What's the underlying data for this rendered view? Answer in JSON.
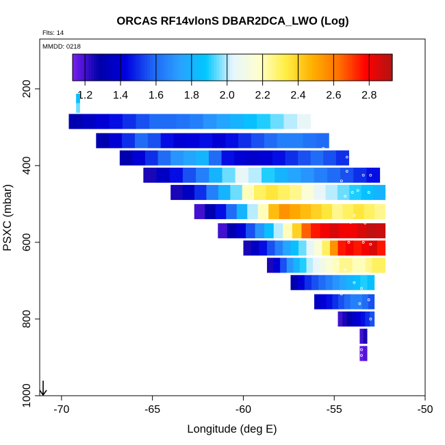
{
  "chart_data": {
    "type": "heatmap",
    "title": "ORCAS RF14vlonS DBAR2DCA_LWO (Log)",
    "annotations": {
      "flights": "Flts: 14",
      "mmdd": "MMDD: 0218"
    },
    "xlabel": "Longitude (deg E)",
    "ylabel": "PSXC (mbar)",
    "xlim": [
      -71.2,
      -50
    ],
    "ylim": [
      1000,
      70
    ],
    "x_ticks": [
      -70,
      -65,
      -60,
      -55,
      -50
    ],
    "x_tick_labels": [
      "-70",
      "-65",
      "-60",
      "-55",
      "-50"
    ],
    "y_ticks": [
      200,
      400,
      600,
      800,
      1000
    ],
    "y_tick_labels": [
      "200",
      "400",
      "600",
      "800",
      "1000"
    ],
    "colorbar": {
      "range": [
        1.13,
        2.93
      ],
      "ticks": [
        1.2,
        1.4,
        1.6,
        1.8,
        2.0,
        2.2,
        2.4,
        2.6,
        2.8
      ],
      "tick_labels": [
        "1.2",
        "1.4",
        "1.6",
        "1.8",
        "2.0",
        "2.2",
        "2.4",
        "2.6",
        "2.8"
      ],
      "colors": [
        "#7a1ff2",
        "#0000a8",
        "#0000e0",
        "#1e64f5",
        "#2aa0ff",
        "#00c8ff",
        "#e6f5ff",
        "#ffffcc",
        "#ffee44",
        "#ffb000",
        "#ff7000",
        "#ff0000",
        "#b01414"
      ]
    },
    "bands": [
      {
        "p": 225,
        "x0": -69.2,
        "x1": -69.0,
        "values": [
          1.85
        ]
      },
      {
        "p": 250,
        "x0": -69.2,
        "x1": -69.0,
        "values": [
          1.95
        ]
      },
      {
        "p": 285,
        "x0": -69.6,
        "x1": -56.3,
        "values": [
          1.3,
          1.35,
          1.4,
          1.45,
          1.5,
          1.55,
          1.6,
          1.6,
          1.62,
          1.65,
          1.7,
          1.75,
          1.8,
          1.85,
          1.9,
          1.95,
          2.0,
          2.05
        ]
      },
      {
        "p": 335,
        "x0": -68.1,
        "x1": -55.3,
        "values": [
          1.3,
          1.4,
          1.5,
          1.6,
          1.55,
          1.45,
          1.4,
          1.42,
          1.45,
          1.4,
          1.45,
          1.5,
          1.55,
          1.6,
          1.65,
          1.65,
          1.62,
          1.6
        ]
      },
      {
        "p": 380,
        "x0": -66.8,
        "x1": -54.2,
        "values": [
          1.3,
          1.4,
          1.5,
          1.6,
          1.7,
          1.75,
          1.8,
          1.6,
          1.45,
          1.4,
          1.38,
          1.4,
          1.45,
          1.5,
          1.55,
          1.6,
          1.55,
          1.5
        ]
      },
      {
        "p": 425,
        "x0": -65.5,
        "x1": -52.5,
        "values": [
          1.25,
          1.35,
          1.45,
          1.55,
          1.65,
          1.8,
          1.95,
          2.05,
          2.0,
          1.9,
          1.8,
          1.75,
          1.7,
          1.65,
          1.6,
          1.55,
          1.5,
          1.45
        ]
      },
      {
        "p": 470,
        "x0": -64.0,
        "x1": -52.2,
        "values": [
          1.25,
          1.35,
          1.5,
          1.65,
          1.8,
          1.95,
          2.2,
          2.3,
          2.35,
          2.3,
          2.25,
          2.15,
          2.05,
          2.0,
          1.95,
          1.9,
          1.85,
          1.8
        ]
      },
      {
        "p": 520,
        "x0": -62.7,
        "x1": -52.2,
        "values": [
          1.2,
          1.3,
          1.45,
          1.6,
          1.8,
          2.0,
          2.2,
          2.45,
          2.55,
          2.5,
          2.45,
          2.4,
          2.35,
          2.25,
          2.3,
          2.35,
          2.3,
          2.25
        ]
      },
      {
        "p": 570,
        "x0": -61.4,
        "x1": -52.2,
        "values": [
          1.2,
          1.3,
          1.4,
          1.55,
          1.7,
          1.85,
          2.0,
          2.2,
          2.4,
          2.65,
          2.75,
          2.8,
          2.85,
          2.8,
          2.8,
          2.85,
          2.9,
          2.88
        ]
      },
      {
        "p": 615,
        "x0": -60.0,
        "x1": -52.2,
        "values": [
          1.25,
          1.35,
          1.45,
          1.55,
          1.65,
          1.75,
          1.85,
          1.95,
          2.05,
          2.15,
          2.3,
          2.55,
          2.75,
          2.8,
          2.75,
          2.8,
          2.85,
          2.75
        ]
      },
      {
        "p": 660,
        "x0": -58.7,
        "x1": -52.2,
        "values": [
          1.25,
          1.4,
          1.55,
          1.7,
          1.8,
          1.9,
          2.0,
          2.05,
          2.1,
          2.15,
          2.2,
          2.25,
          2.25,
          2.2,
          2.2,
          2.25,
          2.3,
          2.3
        ]
      },
      {
        "p": 705,
        "x0": -57.4,
        "x1": -52.8,
        "values": [
          1.3,
          1.4,
          1.5,
          1.55,
          1.6,
          1.65,
          1.7,
          1.75,
          1.8,
          1.85,
          1.9,
          1.85
        ]
      },
      {
        "p": 755,
        "x0": -56.1,
        "x1": -52.8,
        "values": [
          1.35,
          1.4,
          1.45,
          1.5,
          1.55,
          1.6,
          1.65,
          1.65,
          1.6,
          1.55
        ]
      },
      {
        "p": 800,
        "x0": -54.8,
        "x1": -52.8,
        "values": [
          1.2,
          1.25,
          1.3,
          1.35,
          1.4,
          1.45,
          1.5,
          1.55
        ]
      },
      {
        "p": 845,
        "x0": -53.6,
        "x1": -53.2,
        "values": [
          1.2,
          1.25
        ]
      },
      {
        "p": 890,
        "x0": -53.6,
        "x1": -53.2,
        "values": [
          1.15,
          1.18
        ]
      }
    ],
    "markers": [
      [
        -56.2,
        295
      ],
      [
        -55.6,
        355
      ],
      [
        -54.3,
        378
      ],
      [
        -54.0,
        378
      ],
      [
        -53.8,
        378
      ],
      [
        -54.3,
        415
      ],
      [
        -53.4,
        425
      ],
      [
        -53.0,
        425
      ],
      [
        -54.6,
        440
      ],
      [
        -53.7,
        465
      ],
      [
        -54.0,
        470
      ],
      [
        -53.1,
        470
      ],
      [
        -54.4,
        480
      ],
      [
        -53.9,
        530
      ],
      [
        -54.1,
        548
      ],
      [
        -53.3,
        550
      ],
      [
        -54.2,
        600
      ],
      [
        -53.4,
        600
      ],
      [
        -53.0,
        605
      ],
      [
        -54.8,
        655
      ],
      [
        -54.4,
        672
      ],
      [
        -54.0,
        678
      ],
      [
        -53.2,
        680
      ],
      [
        -53.9,
        705
      ],
      [
        -53.5,
        720
      ],
      [
        -54.6,
        735
      ],
      [
        -53.1,
        750
      ],
      [
        -53.6,
        760
      ],
      [
        -53.0,
        800
      ],
      [
        -55.3,
        825
      ],
      [
        -53.1,
        845
      ],
      [
        -54.1,
        855
      ],
      [
        -53.5,
        880
      ],
      [
        -53.5,
        895
      ]
    ]
  }
}
